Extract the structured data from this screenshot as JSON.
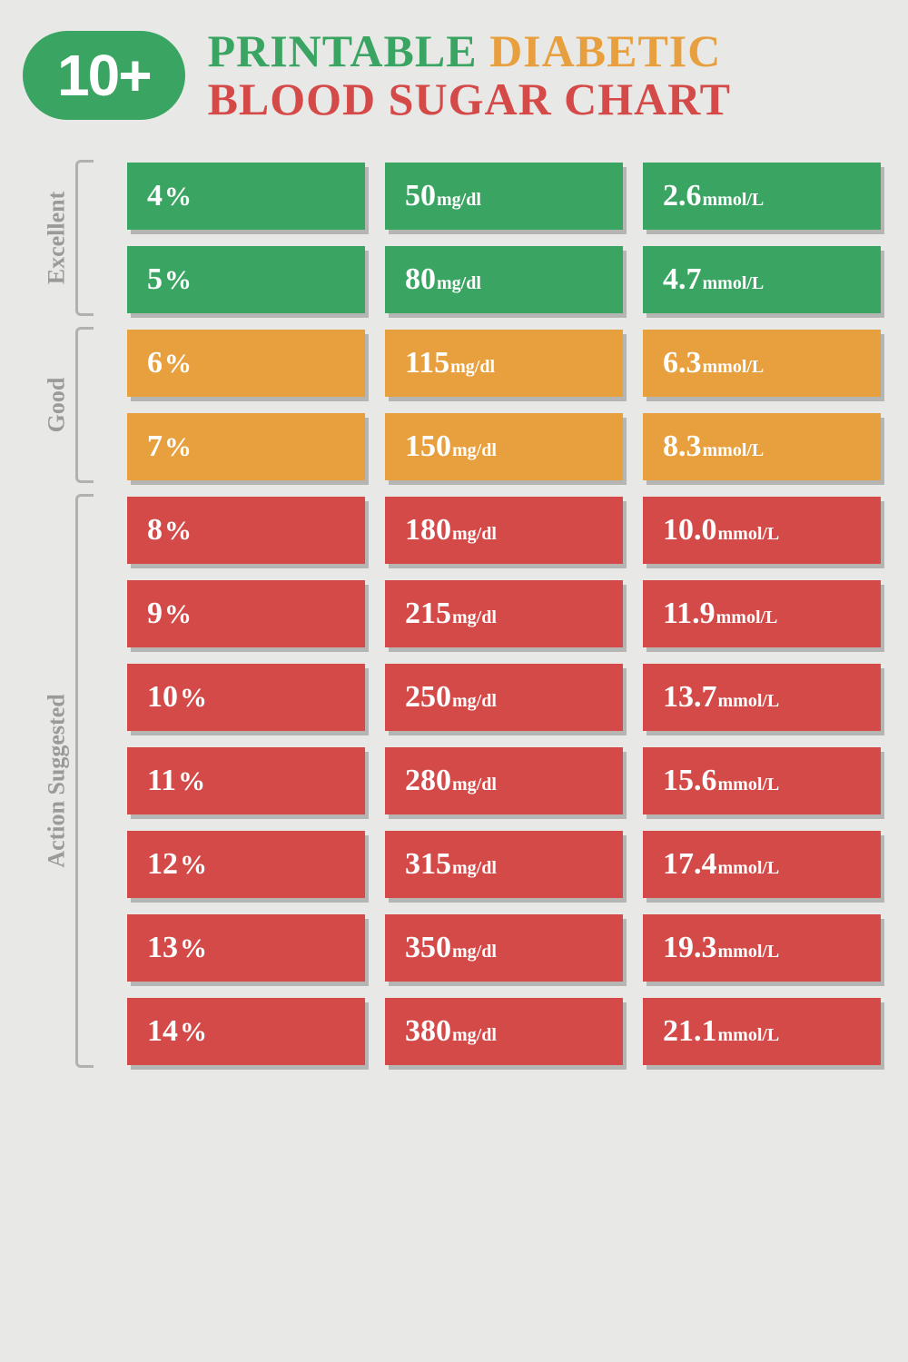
{
  "header": {
    "badge": "10+",
    "line1_a": "PRINTABLE",
    "line1_b": "DIABETIC",
    "line2": "BLOOD SUGAR CHART"
  },
  "styling": {
    "background_color": "#e8e8e6",
    "colors": {
      "green": "#3aa562",
      "orange": "#e8a03f",
      "red": "#d44a48",
      "label_gray": "#9a9a98",
      "bracket_gray": "#b1b1b0",
      "text_white": "#ffffff"
    },
    "badge_fontsize": 64,
    "title_fontsize": 50,
    "section_label_fontsize": 26,
    "value_fontsize": 34,
    "unit_small_fontsize": 20,
    "cell_shadow": "4px 5px 0 rgba(0,0,0,0.22)",
    "column_gap": 22,
    "row_vpad": 9
  },
  "units": {
    "percent": "%",
    "mgdl": "mg/dl",
    "mmoll": "mmol/L"
  },
  "sections": [
    {
      "label": "Excellent",
      "color": "green",
      "rows": [
        {
          "pct": "4",
          "mgdl": "50",
          "mmoll": "2.6"
        },
        {
          "pct": "5",
          "mgdl": "80",
          "mmoll": "4.7"
        }
      ]
    },
    {
      "label": "Good",
      "color": "orange",
      "rows": [
        {
          "pct": "6",
          "mgdl": "115",
          "mmoll": "6.3"
        },
        {
          "pct": "7",
          "mgdl": "150",
          "mmoll": "8.3"
        }
      ]
    },
    {
      "label": "Action Suggested",
      "color": "red",
      "rows": [
        {
          "pct": "8",
          "mgdl": "180",
          "mmoll": "10.0"
        },
        {
          "pct": "9",
          "mgdl": "215",
          "mmoll": "11.9"
        },
        {
          "pct": "10",
          "mgdl": "250",
          "mmoll": "13.7"
        },
        {
          "pct": "11",
          "mgdl": "280",
          "mmoll": "15.6"
        },
        {
          "pct": "12",
          "mgdl": "315",
          "mmoll": "17.4"
        },
        {
          "pct": "13",
          "mgdl": "350",
          "mmoll": "19.3"
        },
        {
          "pct": "14",
          "mgdl": "380",
          "mmoll": "21.1"
        }
      ]
    }
  ]
}
